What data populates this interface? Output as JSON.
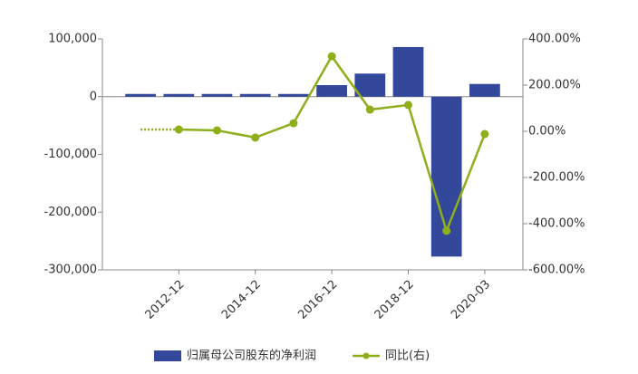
{
  "chart_data": {
    "type": "bar-line",
    "categories": [
      null,
      "2012-12",
      null,
      "2014-12",
      null,
      "2016-12",
      null,
      "2018-12",
      null,
      "2020-03"
    ],
    "series": [
      {
        "name": "归属母公司股东的净利润",
        "type": "bar",
        "color": "#33479b",
        "values": [
          4700,
          4700,
          4700,
          4700,
          4700,
          20000,
          40000,
          86000,
          -277000,
          22000
        ]
      },
      {
        "name": "同比(右)",
        "type": "line",
        "axis": "y2",
        "color": "#8fae1b",
        "values": [
          8,
          8,
          4,
          -27,
          35,
          325,
          94,
          114,
          -431,
          -12
        ]
      }
    ],
    "ylim": [
      -300000,
      100000
    ],
    "yticks": [
      {
        "value": -300000,
        "label": "-300,000"
      },
      {
        "value": -200000,
        "label": "-200,000"
      },
      {
        "value": -100000,
        "label": "-100,000"
      },
      0,
      {
        "value": 100000,
        "label": "100,000"
      }
    ],
    "y2lim": [
      -600,
      400
    ],
    "y2ticks": [
      {
        "value": -600,
        "label": "-600.00%"
      },
      {
        "value": -400,
        "label": "-400.00%"
      },
      {
        "value": -200,
        "label": "-200.00%"
      },
      {
        "value": 0,
        "label": "0.00%"
      },
      {
        "value": 200,
        "label": "200.00%"
      },
      {
        "value": 400,
        "label": "400.00%"
      }
    ],
    "legend": "bottom"
  }
}
